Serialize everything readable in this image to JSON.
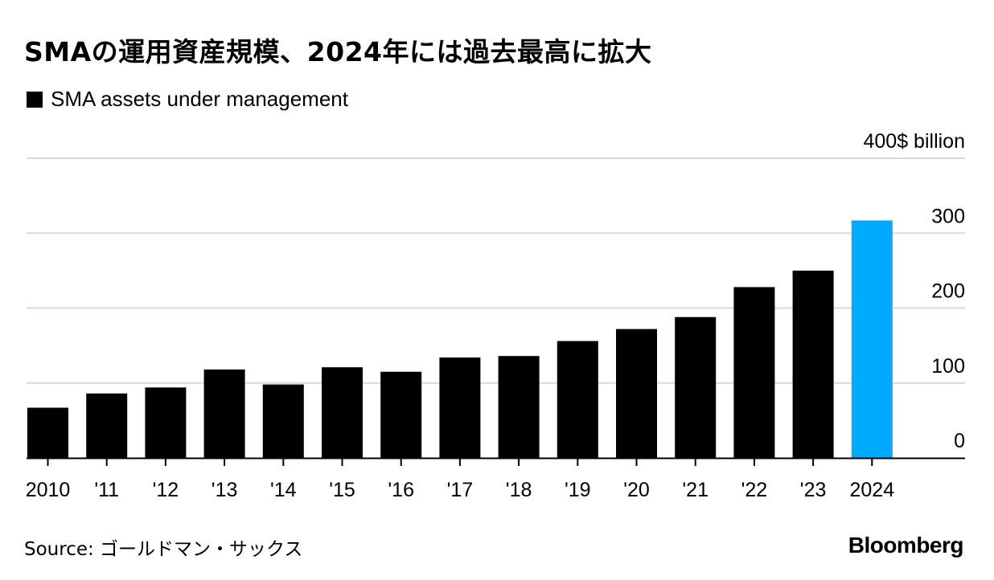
{
  "title": "SMAの運用資産規模、2024年には過去最高に拡大",
  "legend": {
    "label": "SMA assets under management"
  },
  "source": "Source: ゴールドマン・サックス",
  "brand": "Bloomberg",
  "colors": {
    "bar": "#000000",
    "highlight": "#00AAFF",
    "grid": "#d9d9d9",
    "axis": "#000000"
  },
  "chart_data": {
    "type": "bar",
    "title": "SMAの運用資産規模、2024年には過去最高に拡大",
    "xlabel": "",
    "ylabel": "$ billion",
    "unit_label": "$ billion",
    "ylim": [
      0,
      400
    ],
    "yticks": [
      0,
      100,
      200,
      300,
      400
    ],
    "grid": true,
    "legend": "top-left",
    "categories": [
      "2010",
      "'11",
      "'12",
      "'13",
      "'14",
      "'15",
      "'16",
      "'17",
      "'18",
      "'19",
      "'20",
      "'21",
      "'22",
      "'23",
      "2024"
    ],
    "series": [
      {
        "name": "SMA assets under management",
        "values": [
          67,
          86,
          94,
          118,
          98,
          121,
          115,
          134,
          136,
          156,
          172,
          188,
          228,
          250,
          317
        ]
      }
    ],
    "highlight_index": 14
  }
}
